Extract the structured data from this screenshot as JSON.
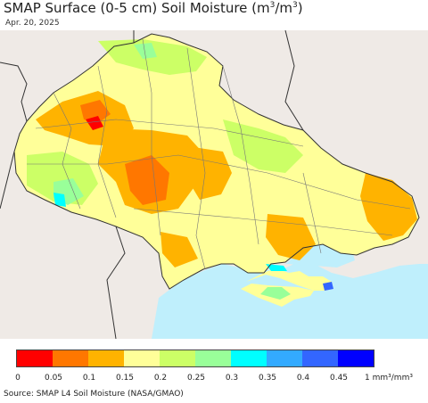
{
  "title": {
    "main": "SMAP Surface (0-5 cm) Soil Moisture (m",
    "sup1": "3",
    "mid": "/m",
    "sup2": "3",
    "end": ")"
  },
  "date": "Apr. 20, 2025",
  "legend": {
    "colors": [
      "#ff0000",
      "#ff7700",
      "#ffb300",
      "#ffff99",
      "#ccff66",
      "#99ff99",
      "#00ffff",
      "#33aaff",
      "#3366ff",
      "#0000ff"
    ],
    "ticks": [
      "0",
      "0.05",
      "0.1",
      "0.15",
      "0.2",
      "0.25",
      "0.3",
      "0.35",
      "0.4",
      "0.45"
    ],
    "unit": "1 mm³/mm³"
  },
  "source": "Source: SMAP L4 Soil Moisture (NASA/GMAO)"
}
